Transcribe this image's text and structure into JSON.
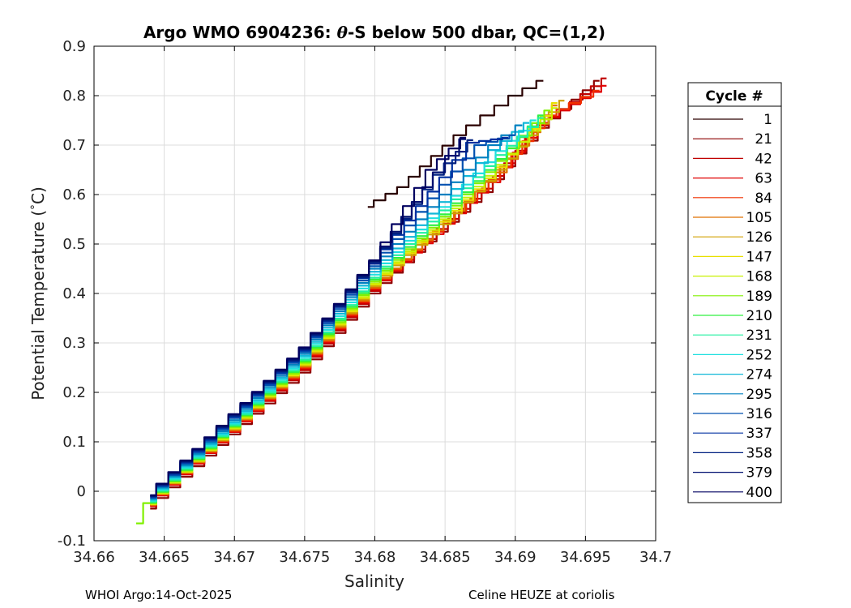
{
  "chart_data": {
    "type": "line",
    "title_prefix": "Argo WMO 6904236: ",
    "title_symbol": "θ",
    "title_suffix": "-S below 500 dbar,  QC=(1,2)",
    "xlabel": "Salinity",
    "ylabel_text": "Potential Temperature (",
    "ylabel_degree": "°",
    "ylabel_unit": "C)",
    "xlim": [
      34.66,
      34.7
    ],
    "ylim": [
      -0.1,
      0.9
    ],
    "xticks": [
      "34.66",
      "34.665",
      "34.67",
      "34.675",
      "34.68",
      "34.685",
      "34.69",
      "34.695",
      "34.7"
    ],
    "yticks": [
      "-0.1",
      "0",
      "0.1",
      "0.2",
      "0.3",
      "0.4",
      "0.5",
      "0.6",
      "0.7",
      "0.8",
      "0.9"
    ],
    "grid": true,
    "legend_title": "Cycle #",
    "legend_position": "right-outside",
    "series": [
      {
        "name": "1",
        "color": "#2a0000",
        "points": [
          [
            34.6795,
            0.575
          ],
          [
            34.682,
            0.615
          ],
          [
            34.686,
            0.72
          ],
          [
            34.688,
            0.76
          ],
          [
            34.69,
            0.8
          ],
          [
            34.692,
            0.83
          ]
        ]
      },
      {
        "name": "21",
        "color": "#8b0000",
        "points": [
          [
            34.664,
            -0.035
          ],
          [
            34.67,
            0.115
          ],
          [
            34.675,
            0.24
          ],
          [
            34.68,
            0.4
          ],
          [
            34.684,
            0.505
          ],
          [
            34.688,
            0.605
          ],
          [
            34.692,
            0.735
          ],
          [
            34.696,
            0.83
          ]
        ]
      },
      {
        "name": "42",
        "color": "#c00000",
        "points": [
          [
            34.664,
            -0.03
          ],
          [
            34.67,
            0.12
          ],
          [
            34.675,
            0.245
          ],
          [
            34.68,
            0.405
          ],
          [
            34.684,
            0.51
          ],
          [
            34.688,
            0.612
          ],
          [
            34.692,
            0.74
          ],
          [
            34.6965,
            0.835
          ]
        ]
      },
      {
        "name": "63",
        "color": "#e00000",
        "points": [
          [
            34.664,
            -0.03
          ],
          [
            34.67,
            0.12
          ],
          [
            34.675,
            0.248
          ],
          [
            34.68,
            0.408
          ],
          [
            34.6845,
            0.52
          ],
          [
            34.6885,
            0.625
          ],
          [
            34.692,
            0.745
          ],
          [
            34.6965,
            0.82
          ]
        ]
      },
      {
        "name": "84",
        "color": "#f03000",
        "points": [
          [
            34.664,
            -0.028
          ],
          [
            34.67,
            0.122
          ],
          [
            34.675,
            0.25
          ],
          [
            34.68,
            0.41
          ],
          [
            34.6845,
            0.525
          ],
          [
            34.6885,
            0.63
          ],
          [
            34.6925,
            0.76
          ],
          [
            34.696,
            0.81
          ]
        ]
      },
      {
        "name": "105",
        "color": "#e07000",
        "points": [
          [
            34.664,
            -0.027
          ],
          [
            34.67,
            0.124
          ],
          [
            34.675,
            0.252
          ],
          [
            34.68,
            0.412
          ],
          [
            34.6845,
            0.528
          ],
          [
            34.689,
            0.645
          ],
          [
            34.693,
            0.78
          ]
        ]
      },
      {
        "name": "126",
        "color": "#d0a000",
        "points": [
          [
            34.664,
            -0.027
          ],
          [
            34.67,
            0.125
          ],
          [
            34.675,
            0.254
          ],
          [
            34.68,
            0.415
          ],
          [
            34.685,
            0.54
          ],
          [
            34.689,
            0.65
          ],
          [
            34.6935,
            0.79
          ]
        ]
      },
      {
        "name": "147",
        "color": "#e8e000",
        "points": [
          [
            34.664,
            -0.026
          ],
          [
            34.67,
            0.127
          ],
          [
            34.675,
            0.256
          ],
          [
            34.68,
            0.418
          ],
          [
            34.685,
            0.545
          ],
          [
            34.689,
            0.655
          ],
          [
            34.693,
            0.785
          ]
        ]
      },
      {
        "name": "168",
        "color": "#c8f000",
        "points": [
          [
            34.664,
            -0.025
          ],
          [
            34.67,
            0.128
          ],
          [
            34.675,
            0.258
          ],
          [
            34.68,
            0.42
          ],
          [
            34.685,
            0.55
          ],
          [
            34.689,
            0.66
          ],
          [
            34.693,
            0.775
          ]
        ]
      },
      {
        "name": "189",
        "color": "#80f000",
        "points": [
          [
            34.663,
            -0.065
          ],
          [
            34.664,
            -0.024
          ],
          [
            34.67,
            0.13
          ],
          [
            34.675,
            0.26
          ],
          [
            34.68,
            0.424
          ],
          [
            34.685,
            0.555
          ],
          [
            34.689,
            0.668
          ],
          [
            34.6925,
            0.77
          ]
        ]
      },
      {
        "name": "210",
        "color": "#30f040",
        "points": [
          [
            34.664,
            -0.023
          ],
          [
            34.67,
            0.132
          ],
          [
            34.675,
            0.263
          ],
          [
            34.68,
            0.428
          ],
          [
            34.685,
            0.56
          ],
          [
            34.689,
            0.672
          ],
          [
            34.692,
            0.76
          ]
        ]
      },
      {
        "name": "231",
        "color": "#20f0a0",
        "points": [
          [
            34.664,
            -0.021
          ],
          [
            34.67,
            0.134
          ],
          [
            34.675,
            0.266
          ],
          [
            34.68,
            0.432
          ],
          [
            34.685,
            0.568
          ],
          [
            34.689,
            0.68
          ],
          [
            34.692,
            0.755
          ]
        ]
      },
      {
        "name": "252",
        "color": "#20e0e0",
        "points": [
          [
            34.664,
            -0.019
          ],
          [
            34.67,
            0.137
          ],
          [
            34.675,
            0.27
          ],
          [
            34.68,
            0.438
          ],
          [
            34.685,
            0.575
          ],
          [
            34.689,
            0.688
          ],
          [
            34.6915,
            0.75
          ]
        ]
      },
      {
        "name": "274",
        "color": "#10b8d8",
        "points": [
          [
            34.664,
            -0.017
          ],
          [
            34.67,
            0.14
          ],
          [
            34.675,
            0.274
          ],
          [
            34.68,
            0.444
          ],
          [
            34.685,
            0.585
          ],
          [
            34.6885,
            0.69
          ],
          [
            34.691,
            0.745
          ]
        ]
      },
      {
        "name": "295",
        "color": "#0080c0",
        "points": [
          [
            34.664,
            -0.015
          ],
          [
            34.67,
            0.144
          ],
          [
            34.675,
            0.278
          ],
          [
            34.68,
            0.45
          ],
          [
            34.685,
            0.6
          ],
          [
            34.6885,
            0.7
          ],
          [
            34.6905,
            0.74
          ]
        ]
      },
      {
        "name": "316",
        "color": "#0050b0",
        "points": [
          [
            34.664,
            -0.013
          ],
          [
            34.67,
            0.148
          ],
          [
            34.675,
            0.282
          ],
          [
            34.68,
            0.455
          ],
          [
            34.685,
            0.62
          ],
          [
            34.6875,
            0.7
          ],
          [
            34.69,
            0.72
          ]
        ]
      },
      {
        "name": "337",
        "color": "#0030a0",
        "points": [
          [
            34.664,
            -0.011
          ],
          [
            34.67,
            0.151
          ],
          [
            34.675,
            0.285
          ],
          [
            34.68,
            0.46
          ],
          [
            34.685,
            0.635
          ],
          [
            34.687,
            0.705
          ],
          [
            34.6895,
            0.715
          ]
        ]
      },
      {
        "name": "358",
        "color": "#002080",
        "points": [
          [
            34.664,
            -0.01
          ],
          [
            34.67,
            0.153
          ],
          [
            34.675,
            0.287
          ],
          [
            34.68,
            0.462
          ],
          [
            34.6845,
            0.64
          ],
          [
            34.687,
            0.71
          ]
        ]
      },
      {
        "name": "379",
        "color": "#001070",
        "points": [
          [
            34.664,
            -0.009
          ],
          [
            34.67,
            0.155
          ],
          [
            34.675,
            0.289
          ],
          [
            34.68,
            0.465
          ],
          [
            34.6845,
            0.645
          ],
          [
            34.6865,
            0.712
          ]
        ]
      },
      {
        "name": "400",
        "color": "#000060",
        "points": [
          [
            34.664,
            -0.008
          ],
          [
            34.67,
            0.156
          ],
          [
            34.675,
            0.291
          ],
          [
            34.68,
            0.467
          ],
          [
            34.684,
            0.65
          ],
          [
            34.6865,
            0.715
          ]
        ]
      }
    ]
  },
  "footer": {
    "left": "WHOI Argo:14-Oct-2025",
    "right": "Celine HEUZE at coriolis"
  }
}
